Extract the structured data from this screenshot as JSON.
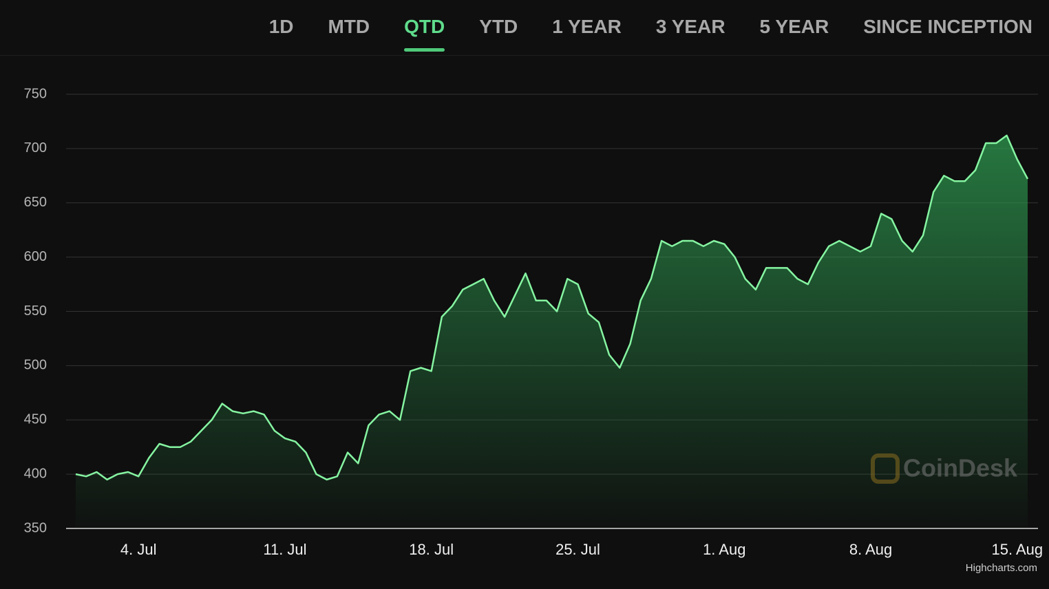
{
  "tabs": [
    "1D",
    "MTD",
    "QTD",
    "YTD",
    "1 YEAR",
    "3 YEAR",
    "5 YEAR",
    "SINCE INCEPTION"
  ],
  "active_tab_index": 2,
  "watermark": "CoinDesk",
  "credits": "Highcharts.com",
  "chart_data": {
    "type": "line",
    "categories": [
      null,
      null,
      null,
      null,
      null,
      null,
      "4. Jul",
      null,
      null,
      null,
      null,
      null,
      null,
      null,
      null,
      null,
      null,
      null,
      null,
      null,
      "11. Jul",
      null,
      null,
      null,
      null,
      null,
      null,
      null,
      null,
      null,
      null,
      null,
      null,
      null,
      "18. Jul",
      null,
      null,
      null,
      null,
      null,
      null,
      null,
      null,
      null,
      null,
      null,
      null,
      null,
      "25. Jul",
      null,
      null,
      null,
      null,
      null,
      null,
      null,
      null,
      null,
      null,
      null,
      null,
      null,
      "1. Aug",
      null,
      null,
      null,
      null,
      null,
      null,
      null,
      null,
      null,
      null,
      null,
      null,
      null,
      "8. Aug",
      null,
      null,
      null,
      null,
      null,
      null,
      null,
      null,
      null,
      null,
      null,
      null,
      null,
      "15. Aug",
      null
    ],
    "values": [
      400,
      398,
      402,
      395,
      400,
      402,
      398,
      415,
      428,
      425,
      425,
      430,
      440,
      450,
      465,
      458,
      456,
      458,
      455,
      440,
      433,
      430,
      420,
      400,
      395,
      398,
      420,
      410,
      445,
      455,
      458,
      450,
      495,
      498,
      495,
      545,
      555,
      570,
      575,
      580,
      560,
      545,
      565,
      585,
      560,
      560,
      550,
      580,
      575,
      548,
      540,
      510,
      498,
      520,
      560,
      580,
      615,
      610,
      615,
      615,
      610,
      615,
      612,
      600,
      580,
      570,
      590,
      590,
      590,
      580,
      575,
      595,
      610,
      615,
      610,
      605,
      610,
      640,
      635,
      615,
      605,
      620,
      660,
      675,
      670,
      670,
      680,
      705,
      705,
      712,
      690,
      672
    ],
    "color": "#86f5a2",
    "fill_color": "#2e9a50",
    "ylim": [
      350,
      750
    ],
    "yticks": [
      350,
      400,
      450,
      500,
      550,
      600,
      650,
      700,
      750
    ],
    "grid": true
  }
}
